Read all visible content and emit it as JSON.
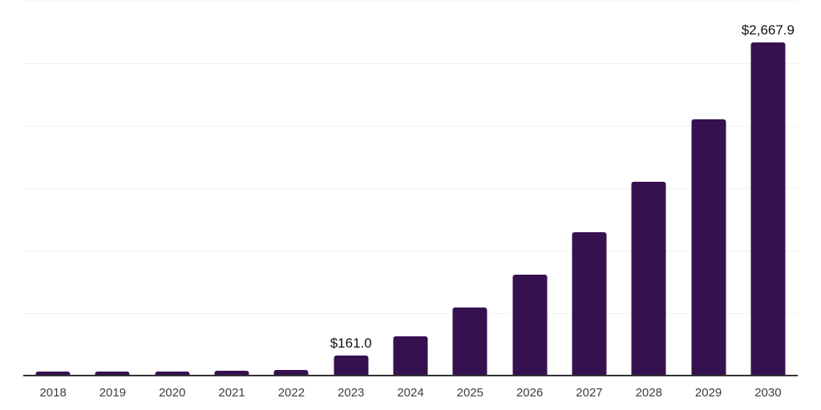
{
  "chart_data": {
    "type": "bar",
    "title": "",
    "xlabel": "",
    "ylabel": "",
    "categories": [
      "2018",
      "2019",
      "2020",
      "2021",
      "2022",
      "2023",
      "2024",
      "2025",
      "2026",
      "2027",
      "2028",
      "2029",
      "2030"
    ],
    "values": [
      32,
      33,
      34,
      36,
      44,
      161.0,
      315,
      545,
      810,
      1150,
      1550,
      2050,
      2667.9
    ],
    "value_labels": [
      "",
      "",
      "",
      "",
      "",
      "$161.0",
      "",
      "",
      "",
      "",
      "",
      "",
      "$2,667.9"
    ],
    "ylim": [
      0,
      3000
    ],
    "grid_step": 500,
    "gridlines": "horizontal",
    "legend": "none",
    "colors": {
      "bar": "#361150",
      "axis_line": "#333333",
      "gridline": "#f1f1f1",
      "tick_label": "#3d3d3d",
      "value_label": "#111111",
      "background": "#ffffff"
    }
  }
}
